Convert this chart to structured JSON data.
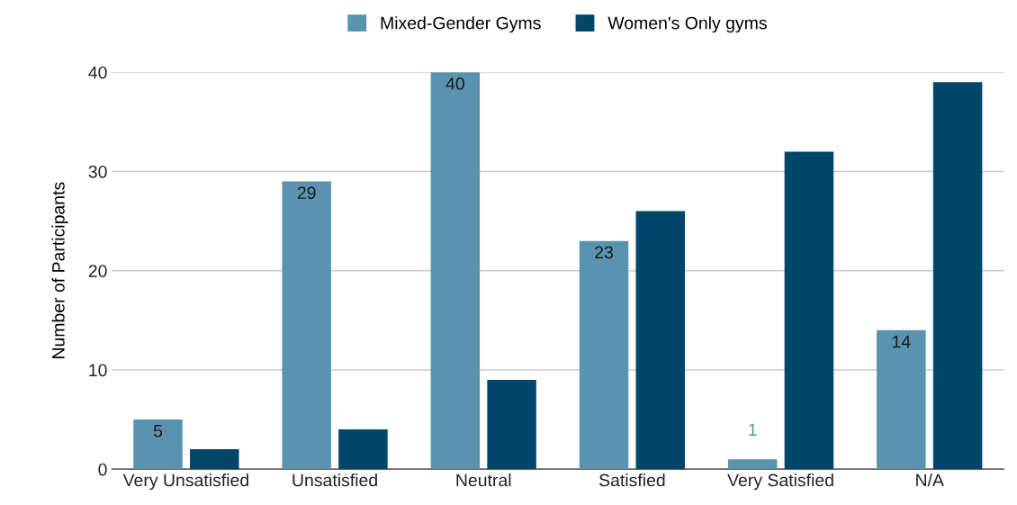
{
  "chart_data": {
    "type": "bar",
    "ylabel": "Number of Participants",
    "categories": [
      "Very Unsatisfied",
      "Unsatisfied",
      "Neutral",
      "Satisfied",
      "Very Satisfied",
      "N/A"
    ],
    "series": [
      {
        "name": "Mixed-Gender Gyms",
        "color": "#5a93b0",
        "values": [
          5,
          29,
          40,
          23,
          1,
          14
        ],
        "value_labels": [
          "5",
          "29",
          "40",
          "23",
          "1",
          "14"
        ]
      },
      {
        "name": "Women's Only gyms",
        "color": "#02466a",
        "values": [
          2,
          4,
          9,
          26,
          32,
          39
        ]
      }
    ],
    "ylim": [
      0,
      40
    ],
    "yticks": [
      0,
      10,
      20,
      30,
      40
    ],
    "grid": "y",
    "legend": "top"
  }
}
